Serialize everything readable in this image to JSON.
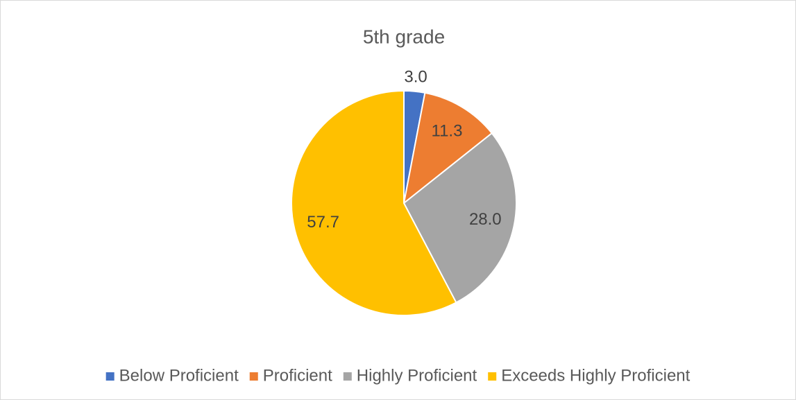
{
  "chart_data": {
    "type": "pie",
    "title": "5th grade",
    "categories": [
      "Below Proficient",
      "Proficient",
      "Highly Proficient",
      "Exceeds Highly Proficient"
    ],
    "values": [
      3.0,
      11.3,
      28.0,
      57.7
    ],
    "value_labels": [
      "3.0",
      "11.3",
      "28.0",
      "57.7"
    ],
    "colors": [
      "#4472c4",
      "#ed7d31",
      "#a5a5a5",
      "#ffc000"
    ],
    "legend": "bottom"
  }
}
